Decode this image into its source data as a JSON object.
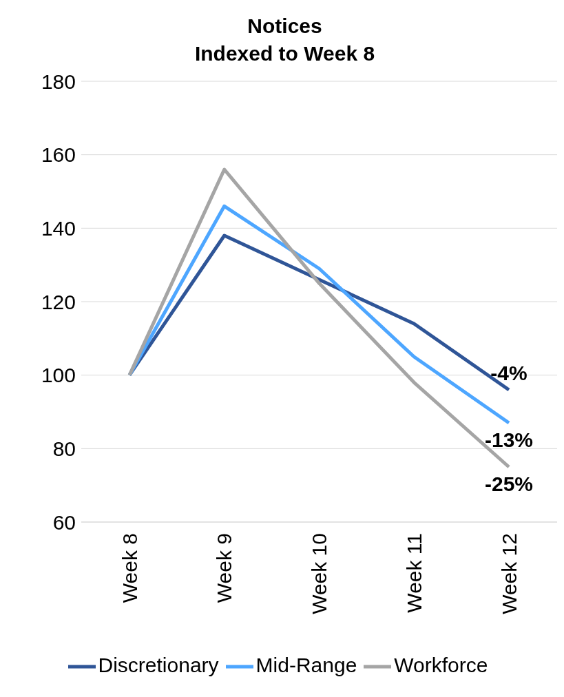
{
  "chart_data": {
    "type": "line",
    "title": "Notices",
    "subtitle": "Indexed to Week 8",
    "categories": [
      "Week 8",
      "Week 9",
      "Week 10",
      "Week 11",
      "Week 12"
    ],
    "series": [
      {
        "name": "Discretionary",
        "color": "#2f5597",
        "values": [
          100,
          138,
          126,
          114,
          96
        ]
      },
      {
        "name": "Mid-Range",
        "color": "#4da6ff",
        "values": [
          100,
          146,
          129,
          105,
          87
        ]
      },
      {
        "name": "Workforce",
        "color": "#a5a5a5",
        "values": [
          100,
          156,
          125,
          98,
          75
        ]
      }
    ],
    "ylim": [
      60,
      180
    ],
    "yticks": [
      60,
      80,
      100,
      120,
      140,
      160,
      180
    ],
    "grid": "y",
    "legend": "bottom",
    "marker": "none",
    "line_style": "solid",
    "annotations": [
      {
        "text": "-4%",
        "x": "Week 12",
        "y": 96
      },
      {
        "text": "-13%",
        "x": "Week 12",
        "y": 87
      },
      {
        "text": "-25%",
        "x": "Week 12",
        "y": 75
      }
    ]
  }
}
